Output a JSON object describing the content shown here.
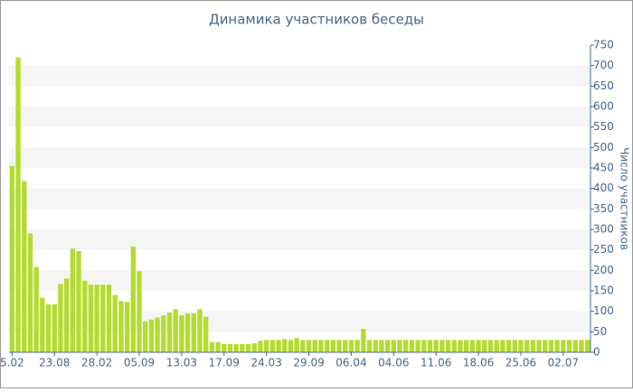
{
  "chart_data": {
    "type": "bar",
    "title": "Динамика участников беседы",
    "y_label": "Число участников",
    "categories": [
      "5.02",
      null,
      null,
      null,
      null,
      null,
      null,
      "23.08",
      null,
      null,
      null,
      null,
      null,
      null,
      "28.02",
      null,
      null,
      null,
      null,
      null,
      null,
      "05.09",
      null,
      null,
      null,
      null,
      null,
      null,
      "13.03",
      null,
      null,
      null,
      null,
      null,
      null,
      "17.09",
      null,
      null,
      null,
      null,
      null,
      null,
      "24.03",
      null,
      null,
      null,
      null,
      null,
      null,
      "29.09",
      null,
      null,
      null,
      null,
      null,
      null,
      "06.04",
      null,
      null,
      null,
      null,
      null,
      null,
      "04.06",
      null,
      null,
      null,
      null,
      null,
      null,
      "11.06",
      null,
      null,
      null,
      null,
      null,
      null,
      "18.06",
      null,
      null,
      null,
      null,
      null,
      null,
      "25.06",
      null,
      null,
      null,
      null,
      null,
      null,
      "02.07",
      null,
      null,
      null,
      null
    ],
    "values": [
      455,
      720,
      418,
      290,
      208,
      133,
      117,
      117,
      167,
      180,
      253,
      247,
      175,
      165,
      165,
      165,
      165,
      140,
      125,
      123,
      258,
      198,
      75,
      80,
      85,
      90,
      97,
      105,
      90,
      95,
      95,
      105,
      87,
      25,
      25,
      20,
      20,
      20,
      20,
      20,
      22,
      28,
      30,
      30,
      30,
      32,
      30,
      35,
      30,
      30,
      30,
      30,
      30,
      30,
      30,
      30,
      30,
      30,
      57,
      30,
      30,
      30,
      30,
      30,
      30,
      30,
      30,
      30,
      30,
      30,
      30,
      30,
      30,
      30,
      30,
      30,
      30,
      30,
      30,
      30,
      30,
      30,
      30,
      30,
      30,
      30,
      30,
      30,
      30,
      30,
      30,
      30,
      30,
      30,
      30,
      30
    ],
    "color": "#b3dc31",
    "ylim": [
      0,
      750
    ],
    "yticks": [
      0,
      50,
      100,
      150,
      200,
      250,
      300,
      350,
      400,
      450,
      500,
      550,
      600,
      650,
      700,
      750
    ],
    "grid": "bands",
    "y_axis_side": "right"
  }
}
